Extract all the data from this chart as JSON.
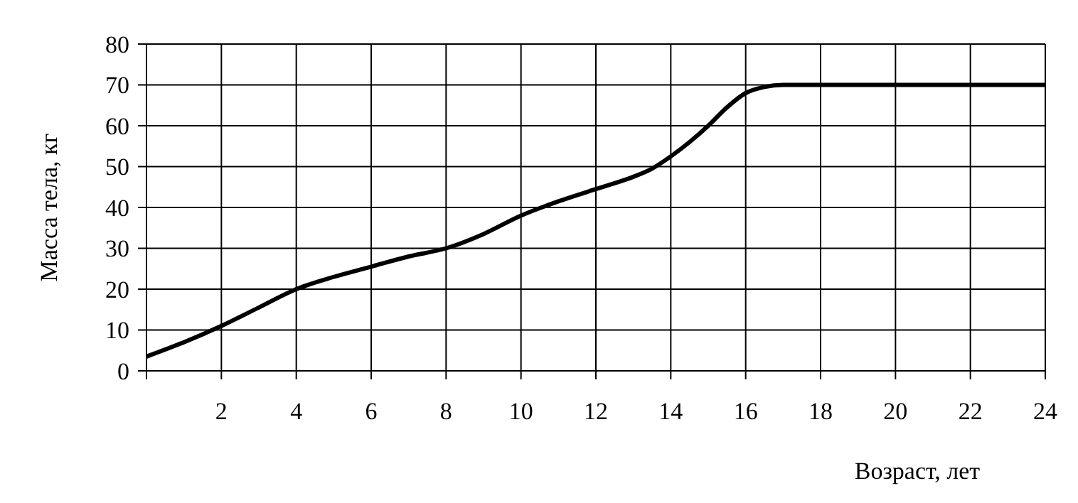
{
  "chart_data": {
    "type": "line",
    "xlabel": "Возраст, лет",
    "ylabel": "Масса тела, кг",
    "series": [
      {
        "color": "#000000",
        "x": [
          0,
          1,
          2,
          3,
          4,
          5,
          6,
          7,
          8,
          9,
          10,
          11,
          12,
          13,
          13.5,
          14,
          14.5,
          15,
          15.5,
          16,
          16.5,
          17,
          24
        ],
        "values": [
          3.5,
          7,
          11,
          15.5,
          20,
          23,
          25.5,
          28,
          30,
          33.5,
          38,
          41.5,
          44.5,
          47.5,
          49.5,
          52.5,
          56,
          60,
          64.5,
          68,
          69.5,
          70,
          70
        ]
      }
    ],
    "xlim": [
      0,
      24
    ],
    "xticks": [
      {
        "value": 0,
        "label": null
      },
      2,
      4,
      6,
      8,
      10,
      12,
      14,
      16,
      18,
      20,
      22,
      24
    ],
    "ylim": [
      0,
      80
    ],
    "yticks": [
      0,
      10,
      20,
      30,
      40,
      50,
      60,
      70,
      80
    ],
    "grid": true,
    "marker": "none",
    "line_style": "solid"
  }
}
